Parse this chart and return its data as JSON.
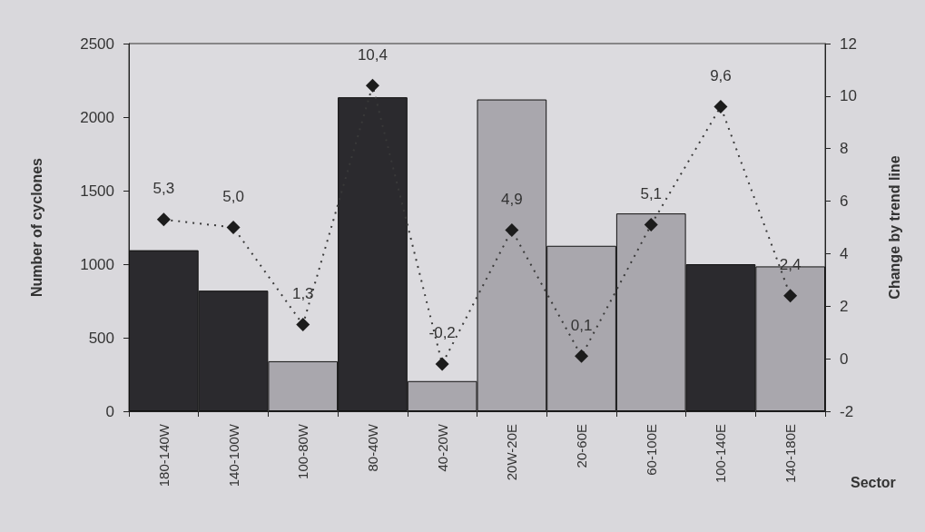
{
  "chart_data": {
    "type": "bar",
    "categories": [
      "180-140W",
      "140-100W",
      "100-80W",
      "80-40W",
      "40-20W",
      "20W-20E",
      "20-60E",
      "60-100E",
      "100-140E",
      "140-180E"
    ],
    "xlabel": "Sector",
    "ylabel": "Number of cyclones",
    "y2label": "Change by trend line",
    "ylim": [
      0,
      2500
    ],
    "yticks": [
      0,
      500,
      1000,
      1500,
      2000,
      2500
    ],
    "y2lim": [
      -2,
      12
    ],
    "y2ticks": [
      -2,
      0,
      2,
      4,
      6,
      8,
      10,
      12
    ],
    "grid": false,
    "marker": "diamond",
    "line_style": "dotted",
    "series": [
      {
        "colors": [
          "#2b2a2e",
          "#2b2a2e",
          "#a9a7ad",
          "#2b2a2e",
          "#a9a7ad",
          "#a9a7ad",
          "#a9a7ad",
          "#a9a7ad",
          "#2b2a2e",
          "#a9a7ad"
        ],
        "values": [
          1095,
          820,
          340,
          2135,
          205,
          2120,
          1125,
          1345,
          1000,
          985
        ]
      },
      {
        "type": "line",
        "axis": "y2",
        "color": "#1c1c1c",
        "values": [
          5.3,
          5.0,
          1.3,
          10.4,
          -0.2,
          4.9,
          0.1,
          5.1,
          9.6,
          2.4
        ],
        "value_labels": [
          "5,3",
          "5,0",
          "1,3",
          "10,4",
          "-0,2",
          "4,9",
          "0,1",
          "5,1",
          "9,6",
          "2,4"
        ]
      }
    ]
  }
}
